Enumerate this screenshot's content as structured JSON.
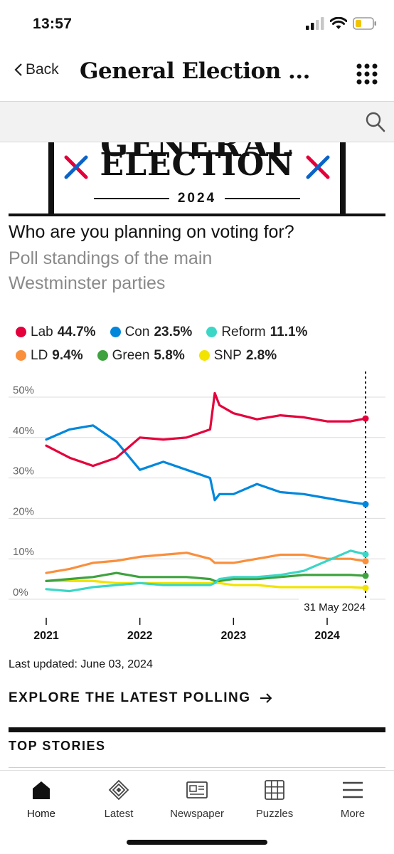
{
  "status_bar": {
    "time": "13:57"
  },
  "nav": {
    "back_label": "Back",
    "title": "General Election ..."
  },
  "search": {
    "placeholder": ""
  },
  "banner": {
    "top_text": "GENERAL",
    "main_text": "ELECTION",
    "year": "2024"
  },
  "question": "Who are you planning on voting for?",
  "subtitle": "Poll standings of the main Westminster parties",
  "legend": [
    {
      "name": "Lab",
      "value": "44.7%",
      "color": "#e4003b"
    },
    {
      "name": "Con",
      "value": "23.5%",
      "color": "#0087dc"
    },
    {
      "name": "Reform",
      "value": "11.1%",
      "color": "#3bd6c6"
    },
    {
      "name": "LD",
      "value": "9.4%",
      "color": "#fa8f3c"
    },
    {
      "name": "Green",
      "value": "5.8%",
      "color": "#3ea23e"
    },
    {
      "name": "SNP",
      "value": "2.8%",
      "color": "#f2e300"
    }
  ],
  "chart_data": {
    "type": "line",
    "x": [
      2021.0,
      2021.25,
      2021.5,
      2021.75,
      2022.0,
      2022.25,
      2022.5,
      2022.75,
      2022.8,
      2022.85,
      2023.0,
      2023.25,
      2023.5,
      2023.75,
      2024.0,
      2024.25,
      2024.41
    ],
    "series": [
      {
        "name": "Lab",
        "color": "#e4003b",
        "values": [
          38,
          35,
          33,
          35,
          40,
          39.5,
          40,
          42,
          51,
          48,
          46,
          44.5,
          45.5,
          45,
          44,
          44,
          44.7
        ]
      },
      {
        "name": "Con",
        "color": "#0087dc",
        "values": [
          39.5,
          42,
          43,
          39,
          32,
          34,
          32,
          30,
          24.5,
          26,
          26,
          28.5,
          26.5,
          26,
          25,
          24,
          23.5
        ]
      },
      {
        "name": "Reform",
        "color": "#3bd6c6",
        "values": [
          2.5,
          2,
          3,
          3.5,
          4,
          3.5,
          3.5,
          3.5,
          4,
          5,
          5.5,
          5.5,
          6,
          7,
          9.5,
          12,
          11.1
        ]
      },
      {
        "name": "LD",
        "color": "#fa8f3c",
        "values": [
          6.5,
          7.5,
          9,
          9.5,
          10.5,
          11,
          11.5,
          10,
          9,
          9,
          9,
          10,
          11,
          11,
          10,
          10,
          9.4
        ]
      },
      {
        "name": "Green",
        "color": "#3ea23e",
        "values": [
          4.5,
          5,
          5.5,
          6.5,
          5.5,
          5.5,
          5.5,
          5,
          4.5,
          4.5,
          5,
          5,
          5.5,
          6,
          6,
          6,
          5.8
        ]
      },
      {
        "name": "SNP",
        "color": "#f2e300",
        "values": [
          4.5,
          4.5,
          4.5,
          4,
          4,
          4,
          4,
          4,
          4,
          4,
          3.5,
          3.5,
          3,
          3,
          3,
          3,
          2.8
        ]
      }
    ],
    "y_ticks": [
      "50%",
      "40%",
      "30%",
      "20%",
      "10%",
      "0%"
    ],
    "x_ticks": [
      "2021",
      "2022",
      "2023",
      "2024"
    ],
    "ylim": [
      0,
      50
    ],
    "xlim": [
      2021.0,
      2024.41
    ],
    "annotation": "31 May 2024",
    "grid": true,
    "legend_placement": "top"
  },
  "last_updated": "Last updated: June 03, 2024",
  "explore_label": "EXPLORE THE LATEST POLLING",
  "top_stories_label": "TOP STORIES",
  "tabs": [
    {
      "label": "Home",
      "icon": "home-icon"
    },
    {
      "label": "Latest",
      "icon": "latest-icon"
    },
    {
      "label": "Newspaper",
      "icon": "newspaper-icon"
    },
    {
      "label": "Puzzles",
      "icon": "puzzles-icon"
    },
    {
      "label": "More",
      "icon": "menu-icon"
    }
  ]
}
